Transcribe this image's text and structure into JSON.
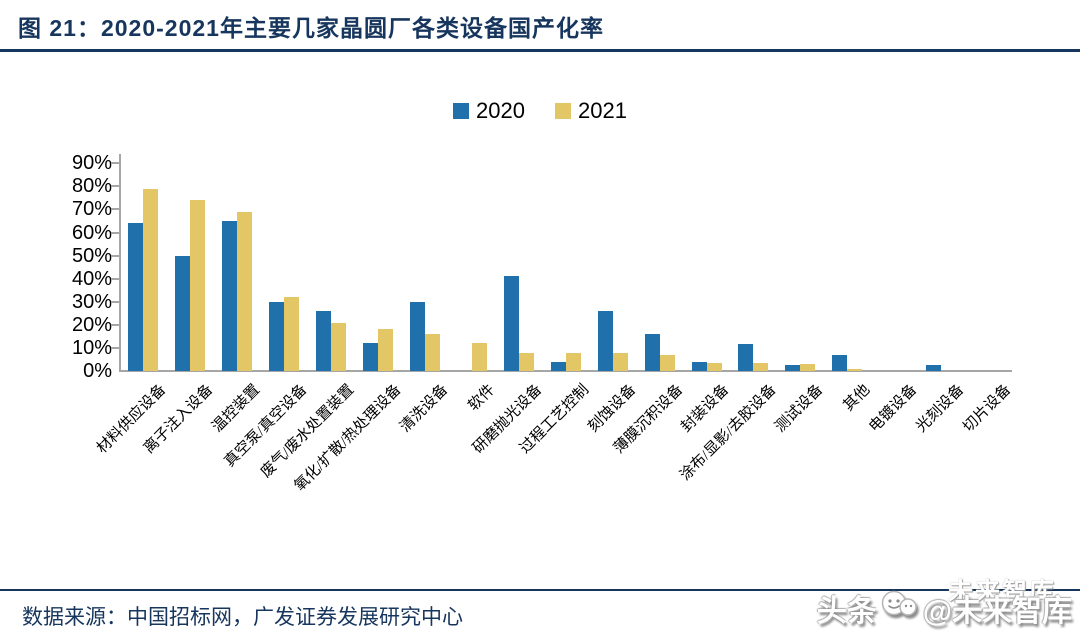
{
  "header": {
    "title": "图 21：2020-2021年主要几家晶圆厂各类设备国产化率"
  },
  "chart_data": {
    "type": "bar",
    "title": "2020-2021年主要几家晶圆厂各类设备国产化率",
    "categories": [
      "材料供应设备",
      "离子注入设备",
      "温控装置",
      "真空泵/真空设备",
      "废气/废水处置装置",
      "氧化/扩散/热处理设备",
      "清洗设备",
      "软件",
      "研磨抛光设备",
      "过程工艺控制",
      "刻蚀设备",
      "薄膜沉积设备",
      "封装设备",
      "涂布/显影/去胶设备",
      "测试设备",
      "其他",
      "电镀设备",
      "光刻设备",
      "切片设备"
    ],
    "series": [
      {
        "name": "2020",
        "color": "#2070AC",
        "values": [
          64,
          50,
          65,
          30,
          26,
          12,
          30,
          0,
          41,
          4,
          26,
          16,
          4,
          11.5,
          2.5,
          7,
          0,
          2.5,
          0
        ]
      },
      {
        "name": "2021",
        "color": "#E3C766",
        "values": [
          79,
          74,
          69,
          32,
          21,
          18,
          16,
          12,
          8,
          8,
          8,
          7,
          3.5,
          3.5,
          3,
          1,
          0,
          0,
          0
        ]
      }
    ],
    "ylabel": "",
    "xlabel": "",
    "ylim": [
      0,
      90
    ],
    "ytick_step": 10,
    "ytick_suffix": "%",
    "grid": false,
    "legend_position": "top-center",
    "axis_color": "#A6A6A6",
    "title_color": "#17365D"
  },
  "footer": {
    "source": "数据来源：中国招标网，广发证券发展研究中心"
  },
  "watermark": {
    "brand": "头条",
    "handle": "@未来智库",
    "ghost": "未来智库"
  }
}
